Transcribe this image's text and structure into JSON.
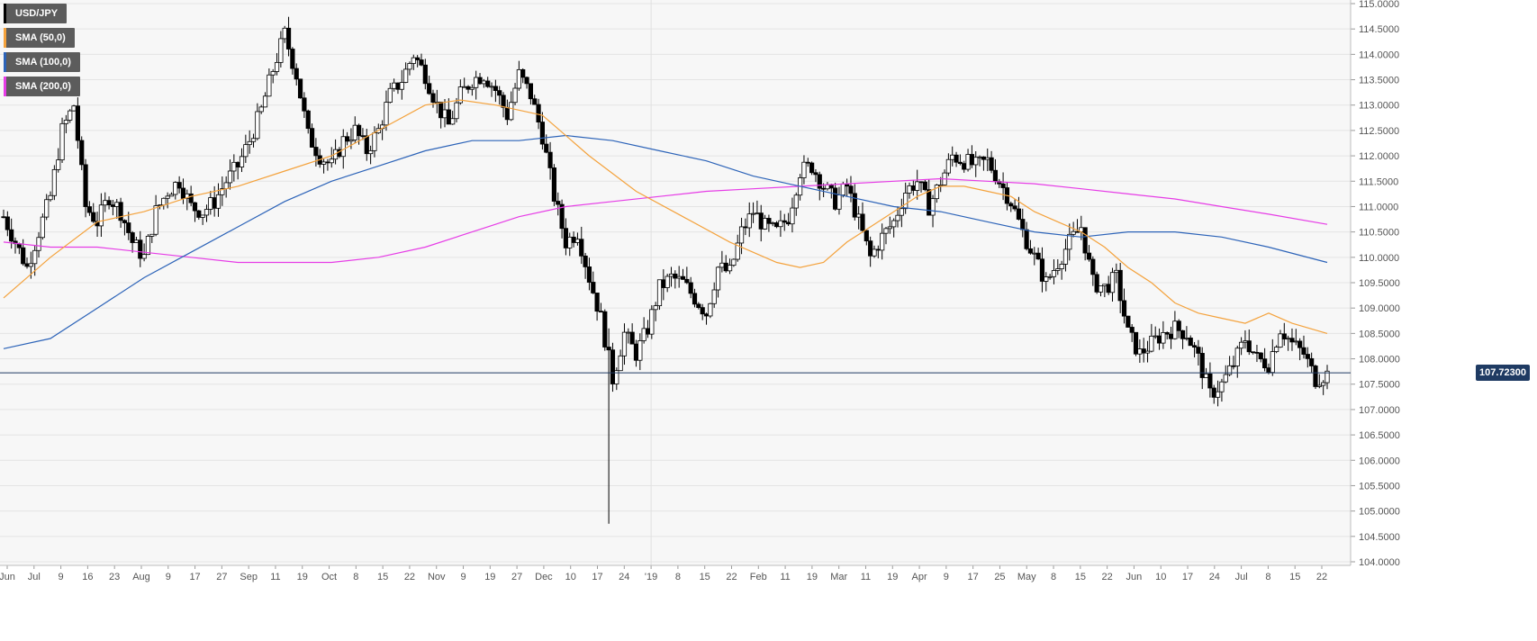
{
  "chart_data": {
    "type": "candlestick",
    "symbol": "USD/JPY",
    "y_axis": {
      "min": 104.0,
      "max": 115.0,
      "ticks": [
        "115.0000",
        "114.5000",
        "114.0000",
        "113.5000",
        "113.0000",
        "112.5000",
        "112.0000",
        "111.5000",
        "111.0000",
        "110.5000",
        "110.0000",
        "109.5000",
        "109.0000",
        "108.5000",
        "108.0000",
        "107.5000",
        "107.0000",
        "106.5000",
        "106.0000",
        "105.5000",
        "105.0000",
        "104.5000",
        "104.0000"
      ],
      "position": "right"
    },
    "x_axis": {
      "ticks": [
        "Jun",
        "Jul",
        "9",
        "16",
        "23",
        "Aug",
        "9",
        "17",
        "27",
        "Sep",
        "11",
        "19",
        "Oct",
        "8",
        "15",
        "22",
        "Nov",
        "9",
        "19",
        "27",
        "Dec",
        "10",
        "17",
        "24",
        "'19",
        "8",
        "15",
        "22",
        "Feb",
        "11",
        "19",
        "Mar",
        "11",
        "19",
        "Apr",
        "9",
        "17",
        "25",
        "May",
        "8",
        "15",
        "22",
        "Jun",
        "10",
        "17",
        "24",
        "Jul",
        "8",
        "15",
        "22"
      ]
    },
    "current_price": "107.72300",
    "current_price_value": 107.723,
    "grid": true,
    "legend": {
      "placement": "top-left",
      "entries": [
        {
          "label": "USD/JPY",
          "color": "#000000"
        },
        {
          "label": "SMA (50,0)",
          "color": "#f4a23c"
        },
        {
          "label": "SMA (100,0)",
          "color": "#2c63b8"
        },
        {
          "label": "SMA (200,0)",
          "color": "#e63ce6"
        }
      ]
    },
    "price_path": [
      [
        0,
        110.8
      ],
      [
        3,
        110.3
      ],
      [
        6,
        109.8
      ],
      [
        9,
        110.5
      ],
      [
        12,
        111.2
      ],
      [
        15,
        112.5
      ],
      [
        18,
        113.0
      ],
      [
        21,
        111.0
      ],
      [
        24,
        110.7
      ],
      [
        27,
        111.2
      ],
      [
        30,
        110.9
      ],
      [
        33,
        110.3
      ],
      [
        36,
        110.0
      ],
      [
        39,
        110.9
      ],
      [
        42,
        111.3
      ],
      [
        45,
        111.5
      ],
      [
        48,
        111.0
      ],
      [
        51,
        110.9
      ],
      [
        54,
        111.1
      ],
      [
        57,
        111.5
      ],
      [
        60,
        111.8
      ],
      [
        63,
        112.3
      ],
      [
        66,
        112.9
      ],
      [
        69,
        113.7
      ],
      [
        72,
        114.4
      ],
      [
        75,
        113.6
      ],
      [
        78,
        112.4
      ],
      [
        81,
        112.0
      ],
      [
        84,
        111.8
      ],
      [
        87,
        112.3
      ],
      [
        90,
        112.5
      ],
      [
        93,
        112.1
      ],
      [
        96,
        112.5
      ],
      [
        99,
        113.2
      ],
      [
        102,
        113.5
      ],
      [
        105,
        114.0
      ],
      [
        108,
        113.6
      ],
      [
        111,
        113.0
      ],
      [
        114,
        112.6
      ],
      [
        117,
        113.2
      ],
      [
        120,
        113.5
      ],
      [
        123,
        113.6
      ],
      [
        126,
        113.3
      ],
      [
        129,
        112.8
      ],
      [
        132,
        113.6
      ],
      [
        135,
        113.2
      ],
      [
        138,
        112.4
      ],
      [
        141,
        111.2
      ],
      [
        144,
        110.3
      ],
      [
        147,
        110.5
      ],
      [
        150,
        109.6
      ],
      [
        153,
        108.8
      ],
      [
        156,
        107.6
      ],
      [
        159,
        108.5
      ],
      [
        162,
        108.1
      ],
      [
        165,
        108.6
      ],
      [
        168,
        109.4
      ],
      [
        171,
        109.6
      ],
      [
        174,
        109.5
      ],
      [
        177,
        109.2
      ],
      [
        180,
        108.9
      ],
      [
        183,
        109.8
      ],
      [
        186,
        109.7
      ],
      [
        189,
        110.5
      ],
      [
        192,
        110.9
      ],
      [
        195,
        110.6
      ],
      [
        198,
        110.5
      ],
      [
        201,
        110.8
      ],
      [
        204,
        111.7
      ],
      [
        207,
        111.8
      ],
      [
        210,
        111.4
      ],
      [
        213,
        111.1
      ],
      [
        216,
        111.4
      ],
      [
        219,
        110.7
      ],
      [
        222,
        110.0
      ],
      [
        225,
        110.4
      ],
      [
        228,
        110.7
      ],
      [
        231,
        111.3
      ],
      [
        234,
        111.5
      ],
      [
        237,
        111.0
      ],
      [
        240,
        111.5
      ],
      [
        243,
        112.0
      ],
      [
        246,
        111.9
      ],
      [
        249,
        111.8
      ],
      [
        252,
        111.9
      ],
      [
        255,
        111.5
      ],
      [
        258,
        111.1
      ],
      [
        261,
        110.5
      ],
      [
        264,
        110.0
      ],
      [
        267,
        109.5
      ],
      [
        270,
        109.9
      ],
      [
        273,
        110.3
      ],
      [
        276,
        110.6
      ],
      [
        279,
        109.5
      ],
      [
        282,
        109.4
      ],
      [
        285,
        109.6
      ],
      [
        288,
        108.5
      ],
      [
        291,
        108.1
      ],
      [
        294,
        108.3
      ],
      [
        297,
        108.5
      ],
      [
        300,
        108.6
      ],
      [
        303,
        108.5
      ],
      [
        306,
        108.0
      ],
      [
        309,
        107.3
      ],
      [
        312,
        107.5
      ],
      [
        315,
        107.9
      ],
      [
        318,
        108.4
      ],
      [
        321,
        108.0
      ],
      [
        324,
        107.9
      ],
      [
        327,
        108.6
      ],
      [
        330,
        108.3
      ],
      [
        333,
        108.1
      ],
      [
        336,
        107.6
      ],
      [
        339,
        107.7
      ]
    ],
    "spikes": [
      {
        "x": 155,
        "low": 104.75,
        "high": 108.6
      }
    ],
    "sma50": [
      [
        0,
        109.2
      ],
      [
        12,
        110.0
      ],
      [
        24,
        110.7
      ],
      [
        36,
        110.9
      ],
      [
        48,
        111.2
      ],
      [
        60,
        111.4
      ],
      [
        72,
        111.7
      ],
      [
        84,
        112.0
      ],
      [
        96,
        112.5
      ],
      [
        108,
        113.0
      ],
      [
        117,
        113.1
      ],
      [
        126,
        113.0
      ],
      [
        138,
        112.8
      ],
      [
        150,
        112.0
      ],
      [
        162,
        111.3
      ],
      [
        174,
        110.8
      ],
      [
        186,
        110.3
      ],
      [
        198,
        109.9
      ],
      [
        204,
        109.8
      ],
      [
        210,
        109.9
      ],
      [
        216,
        110.3
      ],
      [
        222,
        110.6
      ],
      [
        228,
        110.9
      ],
      [
        234,
        111.2
      ],
      [
        240,
        111.4
      ],
      [
        246,
        111.4
      ],
      [
        252,
        111.3
      ],
      [
        258,
        111.2
      ],
      [
        264,
        110.9
      ],
      [
        270,
        110.7
      ],
      [
        276,
        110.5
      ],
      [
        282,
        110.2
      ],
      [
        288,
        109.8
      ],
      [
        294,
        109.5
      ],
      [
        300,
        109.1
      ],
      [
        306,
        108.9
      ],
      [
        312,
        108.8
      ],
      [
        318,
        108.7
      ],
      [
        324,
        108.9
      ],
      [
        330,
        108.7
      ],
      [
        339,
        108.5
      ]
    ],
    "sma100": [
      [
        0,
        108.2
      ],
      [
        12,
        108.4
      ],
      [
        24,
        109.0
      ],
      [
        36,
        109.6
      ],
      [
        48,
        110.1
      ],
      [
        60,
        110.6
      ],
      [
        72,
        111.1
      ],
      [
        84,
        111.5
      ],
      [
        96,
        111.8
      ],
      [
        108,
        112.1
      ],
      [
        120,
        112.3
      ],
      [
        132,
        112.3
      ],
      [
        144,
        112.4
      ],
      [
        156,
        112.3
      ],
      [
        168,
        112.1
      ],
      [
        180,
        111.9
      ],
      [
        192,
        111.6
      ],
      [
        204,
        111.4
      ],
      [
        216,
        111.2
      ],
      [
        228,
        111.0
      ],
      [
        240,
        110.9
      ],
      [
        252,
        110.7
      ],
      [
        264,
        110.5
      ],
      [
        276,
        110.4
      ],
      [
        288,
        110.5
      ],
      [
        300,
        110.5
      ],
      [
        312,
        110.4
      ],
      [
        324,
        110.2
      ],
      [
        339,
        109.9
      ]
    ],
    "sma200": [
      [
        0,
        110.3
      ],
      [
        12,
        110.2
      ],
      [
        24,
        110.2
      ],
      [
        36,
        110.1
      ],
      [
        48,
        110.0
      ],
      [
        60,
        109.9
      ],
      [
        72,
        109.9
      ],
      [
        84,
        109.9
      ],
      [
        96,
        110.0
      ],
      [
        108,
        110.2
      ],
      [
        120,
        110.5
      ],
      [
        132,
        110.8
      ],
      [
        144,
        111.0
      ],
      [
        156,
        111.1
      ],
      [
        168,
        111.2
      ],
      [
        180,
        111.3
      ],
      [
        192,
        111.35
      ],
      [
        204,
        111.4
      ],
      [
        216,
        111.45
      ],
      [
        228,
        111.5
      ],
      [
        240,
        111.55
      ],
      [
        252,
        111.5
      ],
      [
        264,
        111.45
      ],
      [
        276,
        111.35
      ],
      [
        288,
        111.25
      ],
      [
        300,
        111.15
      ],
      [
        312,
        111.0
      ],
      [
        324,
        110.85
      ],
      [
        339,
        110.65
      ]
    ]
  }
}
